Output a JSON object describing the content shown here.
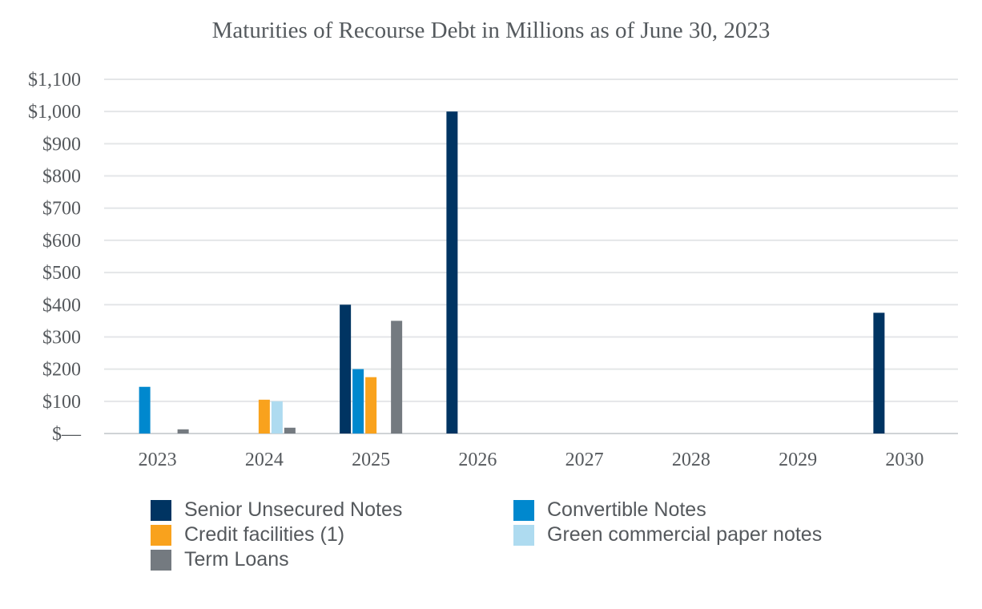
{
  "chart_data": {
    "type": "bar",
    "title": "Maturities of Recourse Debt in Millions as of June 30, 2023",
    "xlabel": "",
    "ylabel": "",
    "categories": [
      "2023",
      "2024",
      "2025",
      "2026",
      "2027",
      "2028",
      "2029",
      "2030"
    ],
    "ylim": [
      0,
      1100
    ],
    "yticks": [
      0,
      100,
      200,
      300,
      400,
      500,
      600,
      700,
      800,
      900,
      1000,
      1100
    ],
    "ytick_labels": [
      "$—",
      "$100",
      "$200",
      "$300",
      "$400",
      "$500",
      "$600",
      "$700",
      "$800",
      "$900",
      "$1,000",
      "$1,100"
    ],
    "grid": true,
    "legend_position": "bottom",
    "series": [
      {
        "name": "Senior Unsecured Notes",
        "color": "#003462",
        "values": [
          0,
          0,
          400,
          1000,
          0,
          0,
          0,
          375
        ]
      },
      {
        "name": "Convertible Notes",
        "color": "#0088ce",
        "values": [
          145,
          0,
          200,
          0,
          0,
          0,
          0,
          0
        ]
      },
      {
        "name": "Credit facilities (1)",
        "color": "#f9a21d",
        "values": [
          0,
          105,
          175,
          0,
          0,
          0,
          0,
          0
        ]
      },
      {
        "name": "Green commercial paper notes",
        "color": "#aedbf0",
        "values": [
          0,
          100,
          0,
          0,
          0,
          0,
          0,
          0
        ]
      },
      {
        "name": "Term Loans",
        "color": "#747a80",
        "values": [
          13,
          18,
          350,
          0,
          0,
          0,
          0,
          0
        ]
      }
    ]
  }
}
